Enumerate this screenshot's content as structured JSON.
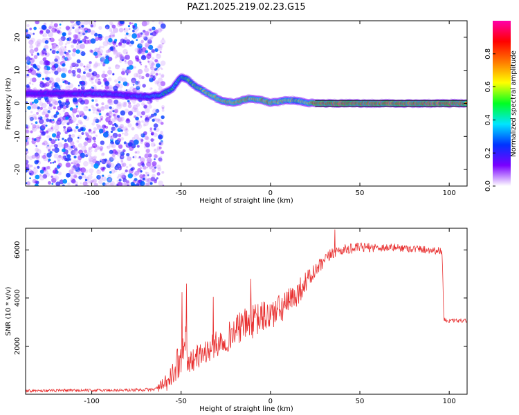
{
  "title": "PAZ1.2025.219.02.23.G15",
  "chart_data": [
    {
      "type": "heatmap",
      "xlabel": "Height of straight line (km)",
      "ylabel": "Frequency (Hz)",
      "xlim": [
        -137,
        110
      ],
      "ylim": [
        -25,
        25
      ],
      "x_ticks": [
        -100,
        -50,
        0,
        50,
        100
      ],
      "y_ticks": [
        -20,
        -10,
        0,
        10,
        20
      ],
      "colorbar": {
        "label": "Normalized spectral amplitude",
        "ticks": [
          "0.0",
          "0.2",
          "0.4",
          "0.6",
          "0.8"
        ],
        "tick_values": [
          0.0,
          0.2,
          0.4,
          0.6,
          0.8
        ],
        "range": [
          0,
          1
        ],
        "colormap": [
          "#ffffff",
          "#7a00ff",
          "#0033ff",
          "#00e5ff",
          "#00ff22",
          "#ffff00",
          "#ff7a00",
          "#ff0000",
          "#ff00aa"
        ]
      },
      "noise_region_x": [
        -137,
        -60
      ],
      "frequency_ridge": {
        "x": [
          -137,
          -120,
          -100,
          -80,
          -70,
          -62,
          -58,
          -55,
          -52,
          -50,
          -47,
          -44,
          -40,
          -35,
          -30,
          -25,
          -20,
          -15,
          -12,
          -5,
          0,
          5,
          10,
          15,
          20,
          25,
          40,
          60,
          80,
          100,
          110
        ],
        "y": [
          3,
          3,
          3,
          2.5,
          2,
          2.5,
          3.5,
          4.5,
          6.5,
          8,
          7.5,
          6,
          4.5,
          3,
          1.5,
          0.5,
          0.2,
          1,
          1.5,
          1,
          0.2,
          0.5,
          1,
          0.8,
          0.3,
          0,
          0,
          0,
          0,
          0,
          0
        ],
        "amplitude": [
          0.25,
          0.25,
          0.3,
          0.3,
          0.35,
          0.4,
          0.45,
          0.45,
          0.4,
          0.45,
          0.5,
          0.55,
          0.6,
          0.62,
          0.65,
          0.7,
          0.75,
          0.75,
          0.7,
          0.72,
          0.75,
          0.7,
          0.65,
          0.6,
          0.6,
          0.9,
          0.9,
          0.9,
          0.9,
          0.9,
          0.9
        ]
      }
    },
    {
      "type": "line",
      "xlabel": "Height of straight line (km)",
      "ylabel": "SNR (10 * v/v)",
      "xlim": [
        -137,
        110
      ],
      "ylim": [
        0,
        6900
      ],
      "x_ticks": [
        -100,
        -50,
        0,
        50,
        100
      ],
      "y_ticks": [
        2000,
        4000,
        6000
      ],
      "series": [
        {
          "color": "#e83030",
          "x": [
            -137,
            -120,
            -100,
            -80,
            -65,
            -58,
            -54,
            -52,
            -50,
            -48,
            -46,
            -44,
            -40,
            -35,
            -30,
            -25,
            -20,
            -15,
            -10,
            -5,
            0,
            5,
            10,
            15,
            20,
            25,
            30,
            35,
            40,
            50,
            60,
            70,
            80,
            90,
            96,
            97,
            100,
            110
          ],
          "y": [
            150,
            150,
            160,
            170,
            200,
            450,
            900,
            1300,
            1500,
            2600,
            1200,
            1400,
            1600,
            1800,
            2100,
            2300,
            2600,
            2900,
            3000,
            3200,
            3300,
            3500,
            3800,
            4200,
            4700,
            5100,
            5500,
            5900,
            6000,
            6100,
            6100,
            6100,
            6050,
            6000,
            5950,
            3100,
            3050,
            3050
          ],
          "noise": [
            60,
            60,
            60,
            60,
            70,
            400,
            500,
            700,
            600,
            900,
            500,
            500,
            500,
            550,
            550,
            600,
            650,
            650,
            700,
            700,
            700,
            650,
            600,
            550,
            450,
            350,
            300,
            250,
            220,
            200,
            180,
            160,
            160,
            160,
            160,
            100,
            80,
            80
          ],
          "spikes": [
            {
              "x": -47,
              "y": 4600
            },
            {
              "x": -49.5,
              "y": 4250
            },
            {
              "x": -32,
              "y": 4050
            },
            {
              "x": -11,
              "y": 4800
            },
            {
              "x": 36,
              "y": 6850
            }
          ]
        }
      ]
    }
  ]
}
